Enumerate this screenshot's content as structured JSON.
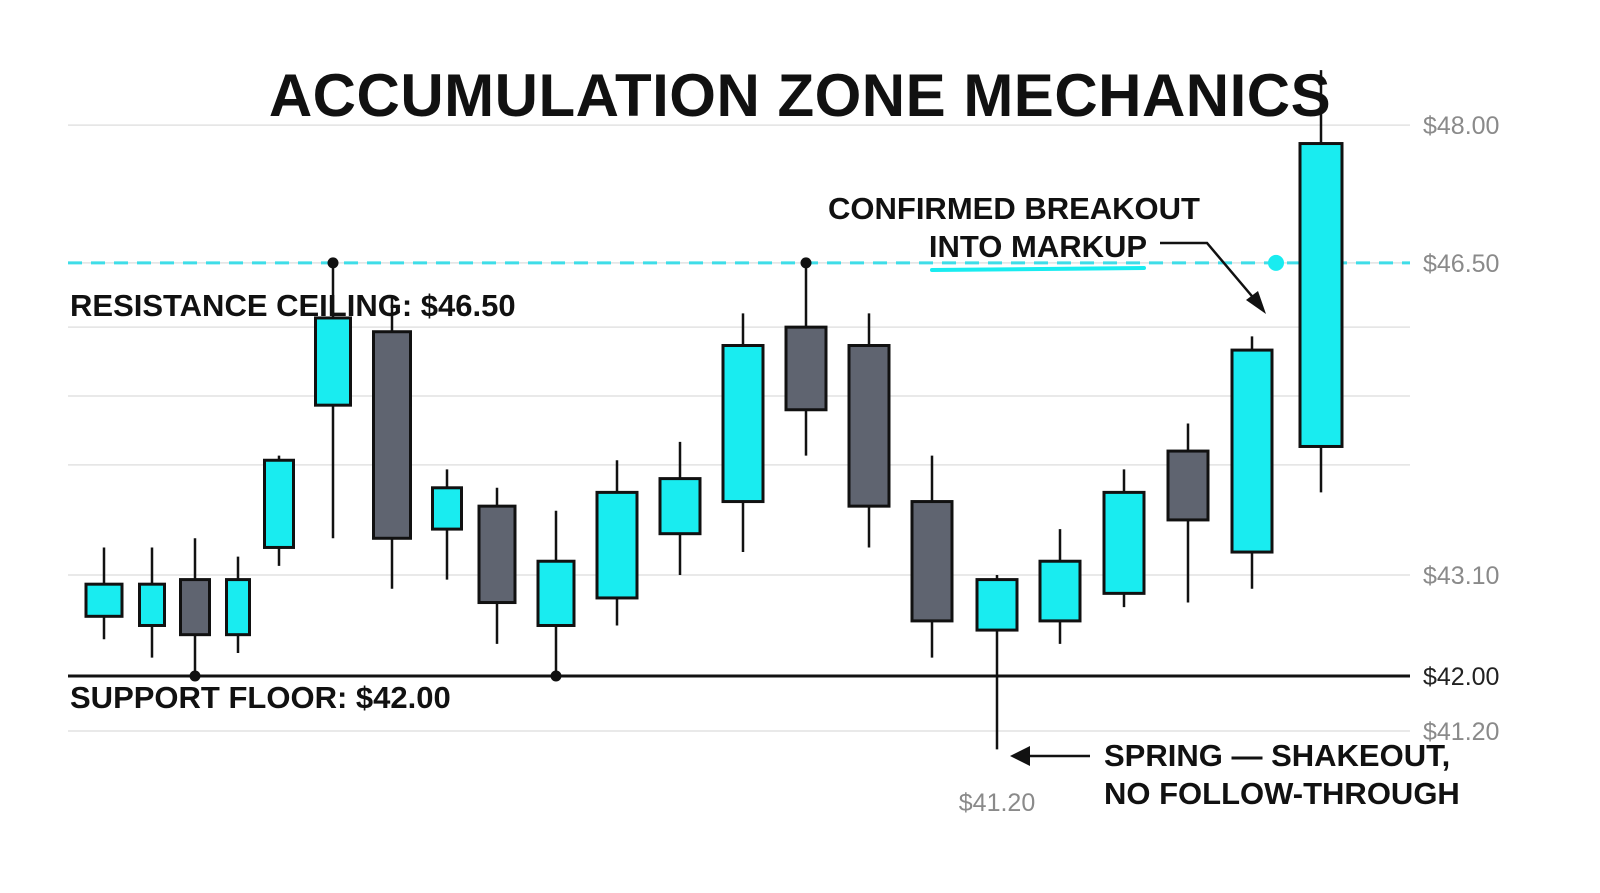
{
  "title": "ACCUMULATION ZONE MECHANICS",
  "annotations": {
    "resistance": "RESISTANCE CEILING: $46.50",
    "support": "SUPPORT FLOOR: $42.00",
    "breakout_line1": "CONFIRMED BREAKOUT",
    "breakout_line2": "INTO MARKUP",
    "spring_line1": "SPRING — SHAKEOUT,",
    "spring_line2": "NO FOLLOW-THROUGH",
    "spring_price": "$41.20"
  },
  "colors": {
    "bull": "#19ecf0",
    "bear": "#5f6470",
    "outline": "#111111",
    "resistance": "#3fdde8",
    "support": "#111111",
    "grid": "#e2e2e2",
    "tick_text": "#8a8a8a"
  },
  "chart_data": {
    "type": "candlestick",
    "title": "ACCUMULATION ZONE MECHANICS",
    "xlabel": "",
    "ylabel": "",
    "y_ticks": [
      "$48.00",
      "$46.50",
      "$43.10",
      "$42.00",
      "$41.20"
    ],
    "resistance": 46.5,
    "support": 42.0,
    "grid": true,
    "candles": [
      {
        "open": 42.65,
        "high": 43.4,
        "low": 42.4,
        "close": 43.0
      },
      {
        "open": 42.55,
        "high": 43.4,
        "low": 42.2,
        "close": 43.0
      },
      {
        "open": 43.05,
        "high": 43.5,
        "low": 42.0,
        "close": 42.45
      },
      {
        "open": 42.45,
        "high": 43.3,
        "low": 42.25,
        "close": 43.05
      },
      {
        "open": 43.4,
        "high": 44.4,
        "low": 43.2,
        "close": 44.35
      },
      {
        "open": 44.95,
        "high": 46.5,
        "low": 43.5,
        "close": 45.9
      },
      {
        "open": 45.75,
        "high": 46.15,
        "low": 42.95,
        "close": 43.5
      },
      {
        "open": 43.6,
        "high": 44.25,
        "low": 43.05,
        "close": 44.05
      },
      {
        "open": 43.85,
        "high": 44.05,
        "low": 42.35,
        "close": 42.8
      },
      {
        "open": 42.55,
        "high": 43.8,
        "low": 42.0,
        "close": 43.25
      },
      {
        "open": 42.85,
        "high": 44.35,
        "low": 42.55,
        "close": 44.0
      },
      {
        "open": 43.55,
        "high": 44.55,
        "low": 43.1,
        "close": 44.15
      },
      {
        "open": 43.9,
        "high": 45.95,
        "low": 43.35,
        "close": 45.6
      },
      {
        "open": 45.8,
        "high": 46.5,
        "low": 44.4,
        "close": 44.9
      },
      {
        "open": 45.6,
        "high": 45.95,
        "low": 43.4,
        "close": 43.85
      },
      {
        "open": 43.9,
        "high": 44.4,
        "low": 42.2,
        "close": 42.6
      },
      {
        "open": 42.5,
        "high": 43.1,
        "low": 41.2,
        "close": 43.05
      },
      {
        "open": 42.6,
        "high": 43.6,
        "low": 42.35,
        "close": 43.25
      },
      {
        "open": 42.9,
        "high": 44.25,
        "low": 42.75,
        "close": 44.0
      },
      {
        "open": 44.45,
        "high": 44.75,
        "low": 42.8,
        "close": 43.7
      },
      {
        "open": 43.35,
        "high": 45.7,
        "low": 42.95,
        "close": 45.55
      },
      {
        "open": 44.5,
        "high": 48.6,
        "low": 44.0,
        "close": 47.8
      }
    ],
    "markers": [
      {
        "candle": 2,
        "value": 42.0
      },
      {
        "candle": 5,
        "value": 46.5
      },
      {
        "candle": 9,
        "value": 42.0
      },
      {
        "candle": 13,
        "value": 46.5
      },
      {
        "candle": 21,
        "value": 46.5
      }
    ]
  }
}
